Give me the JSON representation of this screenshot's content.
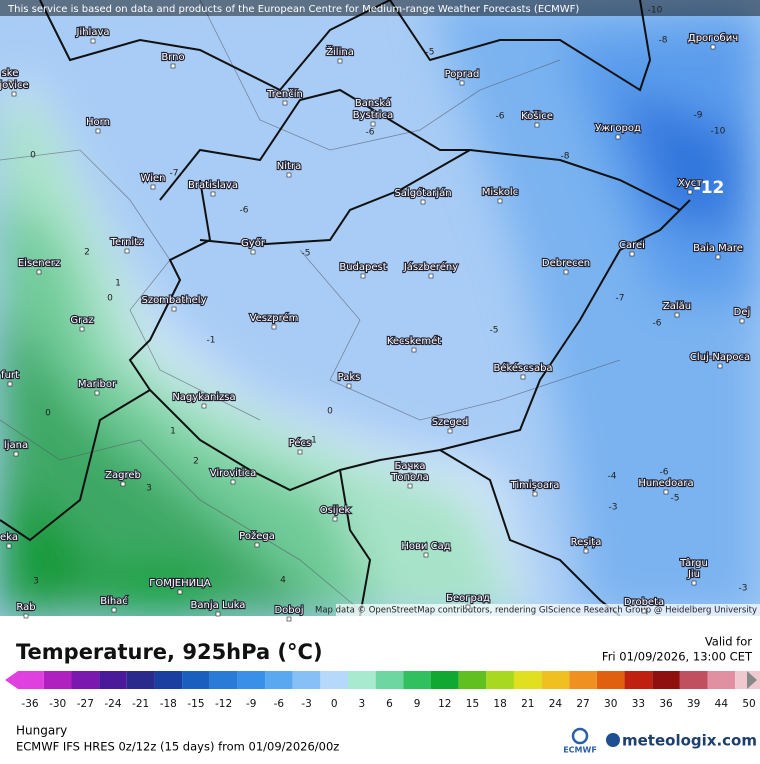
{
  "attribution": "This service is based on data and products of the European Centre for Medium-range Weather Forecasts (ECMWF)",
  "map_credit": "Map data © OpenStreetMap contributors, rendering GIScience Research Group @ Heidelberg University",
  "cities": [
    "Jihlava",
    "Brno",
    "Žilina",
    "Poprad",
    "Дрогобич",
    "ske",
    "jovice",
    "Trenčín",
    "Banská",
    "Bystrica",
    "Horn",
    "Košice",
    "Ужгород",
    "Nitra",
    "Wien",
    "Bratislava",
    "Salgótarján",
    "Miskolc",
    "Хуст",
    "Ternitz",
    "Győr",
    "Carei",
    "Baia Mare",
    "Eisenerz",
    "Budapest",
    "Jászberény",
    "Debrecen",
    "Szombathely",
    "Zalău",
    "Graz",
    "Veszprém",
    "Dej",
    "Kecskemét",
    "Cluj-Napoca",
    "furt",
    "Paks",
    "Békéscsaba",
    "Maribor",
    "Nagykanizsa",
    "ljana",
    "Szeged",
    "Pécs",
    "Zagreb",
    "Virovitica",
    "Бачка",
    "Топола",
    "Timișoara",
    "Hunedoara",
    "eka",
    "Osijek",
    "Požega",
    "Reșița",
    "Нови Сад",
    "Târgu",
    "Jiu",
    "ГОМЈЕНИЦА",
    "Banja Luka",
    "Doboj",
    "Rab",
    "Bihać",
    "Београд",
    "Drobeta"
  ],
  "contour_labels": [
    -10,
    -8,
    -5,
    -9,
    -10,
    -6,
    -6,
    -8,
    -7,
    -12,
    -6,
    -5,
    0,
    2,
    1,
    0,
    -7,
    -6,
    -5,
    -1,
    0,
    0,
    1,
    1,
    2,
    3,
    -4,
    -6,
    -5,
    -3,
    4,
    3,
    -3
  ],
  "legend": {
    "title": "Temperature, 925hPa (°C)",
    "ticks": [
      -36,
      -30,
      -27,
      -24,
      -21,
      -18,
      -15,
      -12,
      -9,
      -6,
      -3,
      0,
      3,
      6,
      9,
      12,
      15,
      18,
      21,
      24,
      27,
      30,
      33,
      36,
      39,
      44,
      50
    ]
  },
  "valid": {
    "label": "Valid for",
    "time": "Fri 01/09/2026, 13:00 CET"
  },
  "region": "Hungary",
  "model": "ECMWF IFS HRES 0z/12z (15 days) from  01/09/2026/00z",
  "logos": {
    "ecmwf": "ECMWF",
    "site": "meteologix.com"
  }
}
